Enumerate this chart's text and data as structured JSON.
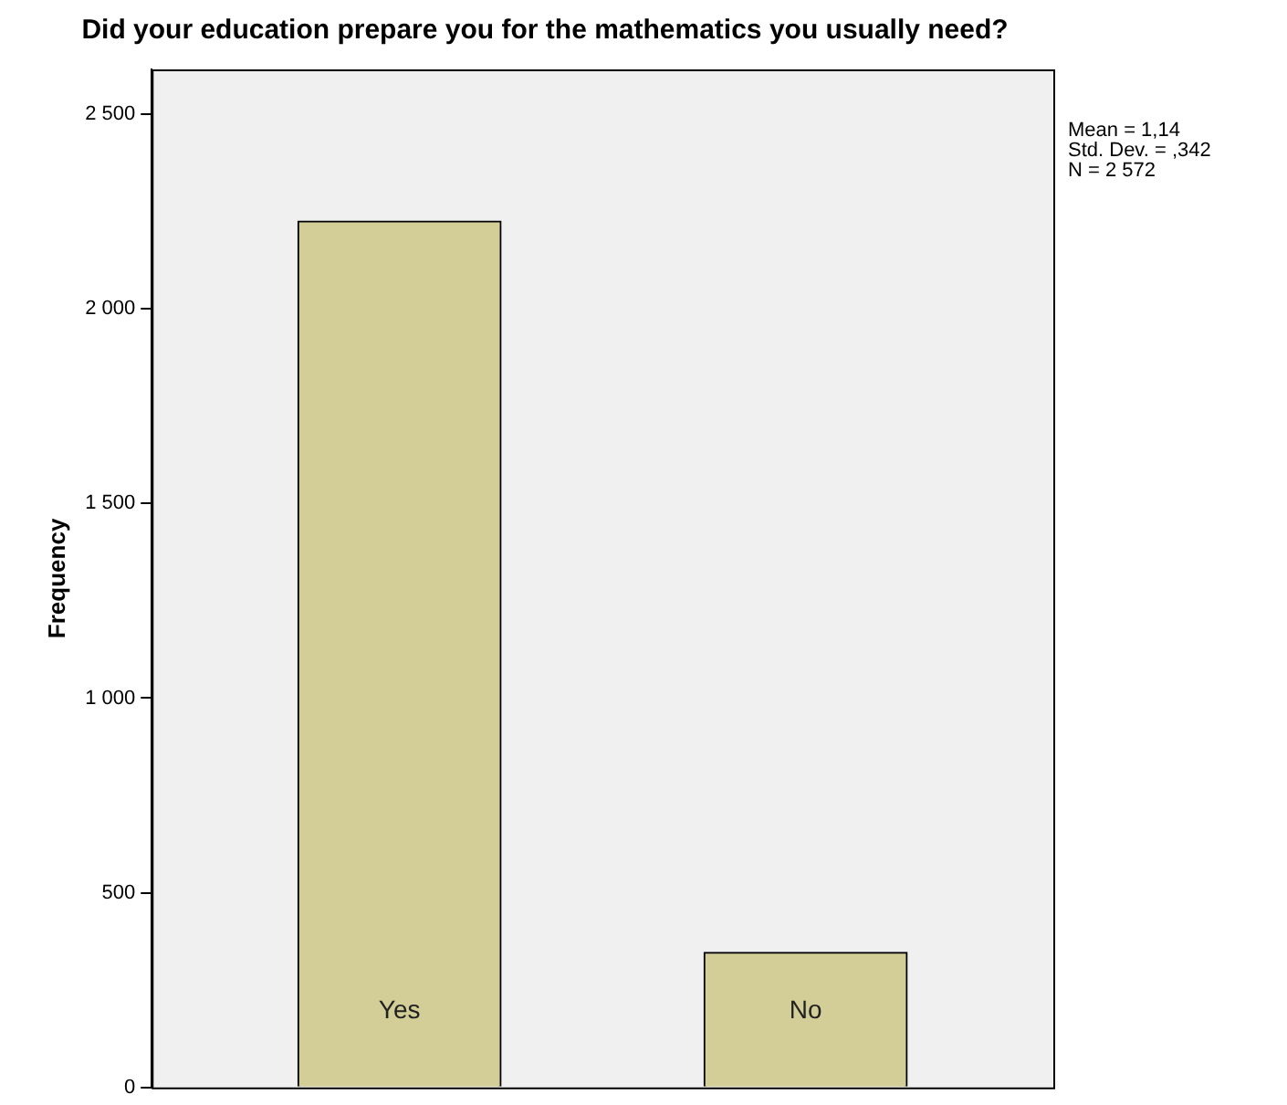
{
  "chart_data": {
    "type": "bar",
    "title": "Did your education prepare you for the mathematics you usually need?",
    "ylabel": "Frequency",
    "categories": [
      "Yes",
      "No"
    ],
    "values": [
      2225,
      347
    ],
    "color": "#d3ce97",
    "ylim": [
      0,
      2615
    ],
    "yticks": [
      {
        "value": 0,
        "label": "0"
      },
      {
        "value": 500,
        "label": "500"
      },
      {
        "value": 1000,
        "label": "1 000"
      },
      {
        "value": 1500,
        "label": "1 500"
      },
      {
        "value": 2000,
        "label": "2 000"
      },
      {
        "value": 2500,
        "label": "2 500"
      }
    ],
    "annotations": [
      "Mean = 1,14",
      "Std. Dev. = ,342",
      "N = 2 572"
    ],
    "grid": false,
    "legend": false
  }
}
